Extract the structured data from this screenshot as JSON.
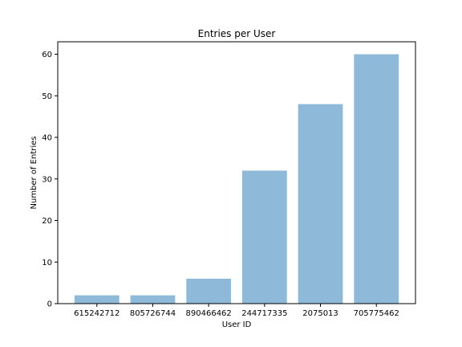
{
  "chart_data": {
    "type": "bar",
    "title": "Entries per User",
    "xlabel": "User ID",
    "ylabel": "Number of Entries",
    "categories": [
      "615242712",
      "805726744",
      "890466462",
      "244717335",
      "2075013",
      "705775462"
    ],
    "values": [
      2,
      2,
      6,
      32,
      48,
      60
    ],
    "ylim": [
      0,
      63
    ],
    "yticks": [
      0,
      10,
      20,
      30,
      40,
      50,
      60
    ],
    "grid": false,
    "bar_color": "#8fb9d9"
  }
}
